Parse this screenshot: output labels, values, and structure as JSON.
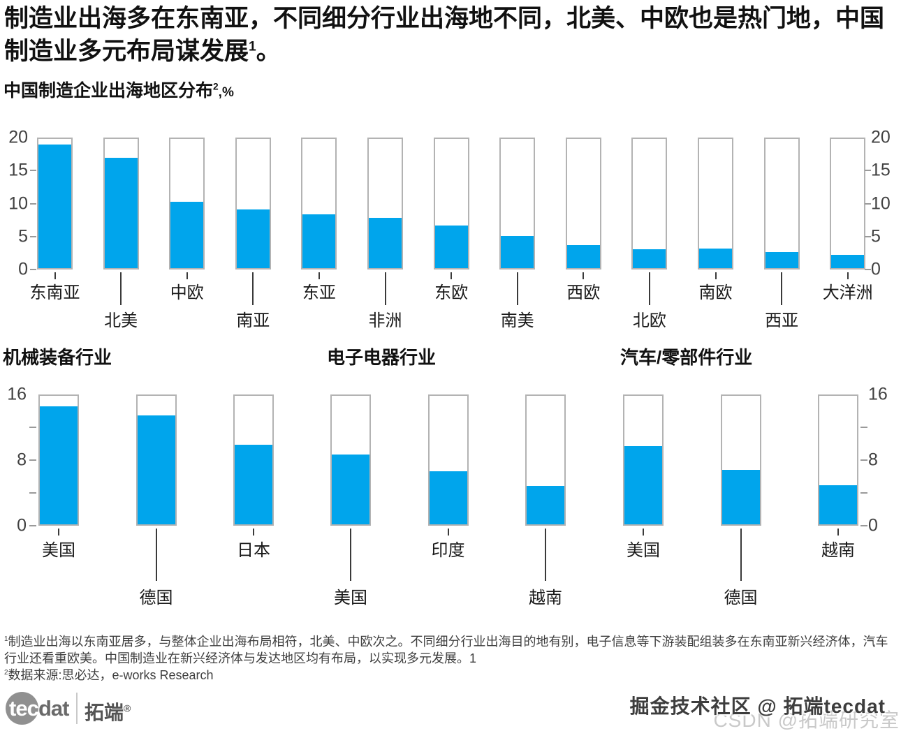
{
  "header": {
    "title_text": "制造业出海多在东南亚，不同细分行业出海地不同，北美、中欧也是热门地，中国制造业多元布局谋发展",
    "title_sup": "1",
    "title_tail": "。"
  },
  "subtitle": {
    "text": "中国制造企业出海地区分布",
    "sup": "2",
    "suffix": ",%"
  },
  "colors": {
    "bar_fill": "#00A5EC",
    "bar_frame": "#B3B3B3",
    "axis_text": "#414141",
    "tick_line": "#3A3A3A",
    "text_primary": "#111111",
    "footnote_text": "#3F3F3F",
    "logo_gray": "#909090",
    "watermark_dark": "#3D3D3D",
    "watermark_light": "#C9C9C9"
  },
  "chart_data": [
    {
      "type": "bar",
      "title": "中国制造企业出海地区分布²,%",
      "unit": "%",
      "categories": [
        "东南亚",
        "北美",
        "中欧",
        "南亚",
        "东亚",
        "非洲",
        "东欧",
        "南美",
        "西欧",
        "北欧",
        "南欧",
        "西亚",
        "大洋洲"
      ],
      "values": [
        19.1,
        17.1,
        10.3,
        9.1,
        8.3,
        7.8,
        6.6,
        5.0,
        3.6,
        2.9,
        3.0,
        2.5,
        2.1
      ],
      "ylim": [
        0,
        20
      ],
      "yticks": [
        0,
        5,
        10,
        15,
        20
      ],
      "minor_ticks": [],
      "axis_sides": "both",
      "grid": false,
      "legend": "none"
    },
    {
      "type": "bar",
      "title": "机械装备行业",
      "unit": "%",
      "categories": [
        "美国",
        "德国",
        "日本"
      ],
      "values": [
        14.7,
        13.6,
        9.9
      ],
      "ylim": [
        0,
        16
      ],
      "yticks": [
        0,
        8,
        16
      ],
      "minor_ticks": [
        4,
        12
      ],
      "axis_sides": "left",
      "grid": false,
      "legend": "none"
    },
    {
      "type": "bar",
      "title": "电子电器行业",
      "unit": "%",
      "categories": [
        "美国",
        "印度",
        "越南"
      ],
      "values": [
        8.7,
        6.6,
        4.8
      ],
      "ylim": [
        0,
        16
      ],
      "yticks": [
        0,
        8,
        16
      ],
      "minor_ticks": [],
      "axis_sides": "none",
      "grid": false,
      "legend": "none"
    },
    {
      "type": "bar",
      "title": "汽车/零部件行业",
      "unit": "%",
      "categories": [
        "美国",
        "德国",
        "越南"
      ],
      "values": [
        9.7,
        6.8,
        4.9
      ],
      "ylim": [
        0,
        16
      ],
      "yticks": [
        0,
        8,
        16
      ],
      "minor_ticks": [
        4,
        12
      ],
      "axis_sides": "right",
      "grid": false,
      "legend": "none"
    }
  ],
  "footnotes": {
    "note1_sup": "1",
    "note1_text": "制造业出海以东南亚居多，与整体企业出海布局相符，北美、中欧次之。不同细分行业出海目的地有别，电子信息等下游装配组装多在东南亚新兴经济体，汽车行业还看重欧美。中国制造业在新兴经济体与发达地区均有布局，以实现多元发展。1",
    "note2_sup": "2",
    "note2_text": "数据来源:思必达，e-works Research"
  },
  "logo": {
    "tec": "tec",
    "dat": "dat",
    "zh": "拓端",
    "reg": "®"
  },
  "watermarks": {
    "community": "掘金技术社区 @ 拓端tecdat",
    "csdn": "CSDN @拓端研究室"
  }
}
